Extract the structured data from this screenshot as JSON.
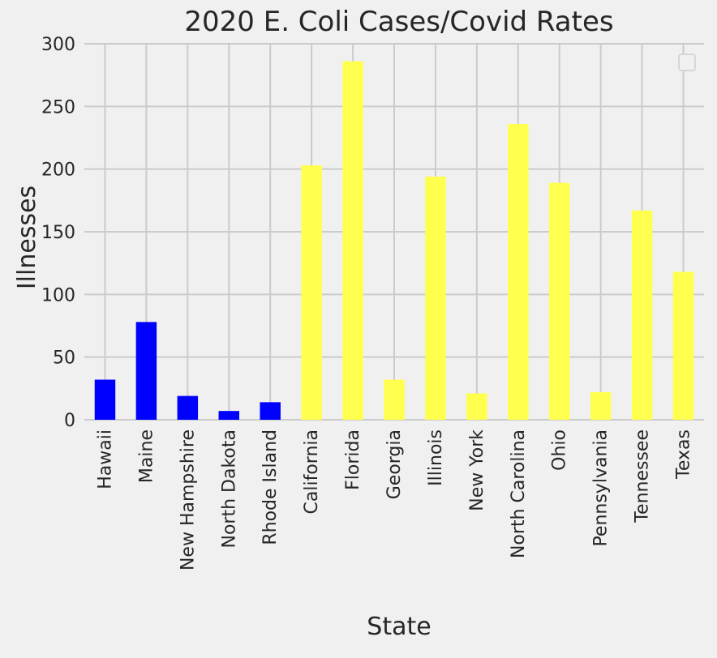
{
  "chart_data": {
    "type": "bar",
    "title": "2020 E. Coli Cases/Covid Rates",
    "xlabel": "State",
    "ylabel": "Illnesses",
    "ylim": [
      0,
      300
    ],
    "yticks": [
      0,
      50,
      100,
      150,
      200,
      250,
      300
    ],
    "grid": true,
    "legend": "top-right (empty)",
    "categories": [
      "Hawaii",
      "Maine",
      "New Hampshire",
      "North Dakota",
      "Rhode Island",
      "California",
      "Florida",
      "Georgia",
      "Illinois",
      "New York",
      "North Carolina",
      "Ohio",
      "Pennsylvania",
      "Tennessee",
      "Texas"
    ],
    "values": [
      32,
      78,
      19,
      7,
      14,
      203,
      286,
      32,
      194,
      21,
      236,
      189,
      22,
      167,
      118
    ],
    "bar_colors": [
      "#0000ff",
      "#0000ff",
      "#0000ff",
      "#0000ff",
      "#0000ff",
      "#ffff4d",
      "#ffff4d",
      "#ffff4d",
      "#ffff4d",
      "#ffff4d",
      "#ffff4d",
      "#ffff4d",
      "#ffff4d",
      "#ffff4d",
      "#ffff4d"
    ]
  },
  "colors": {
    "background": "#f0f0f0",
    "grid": "#cbcbcb",
    "text": "#262626"
  }
}
